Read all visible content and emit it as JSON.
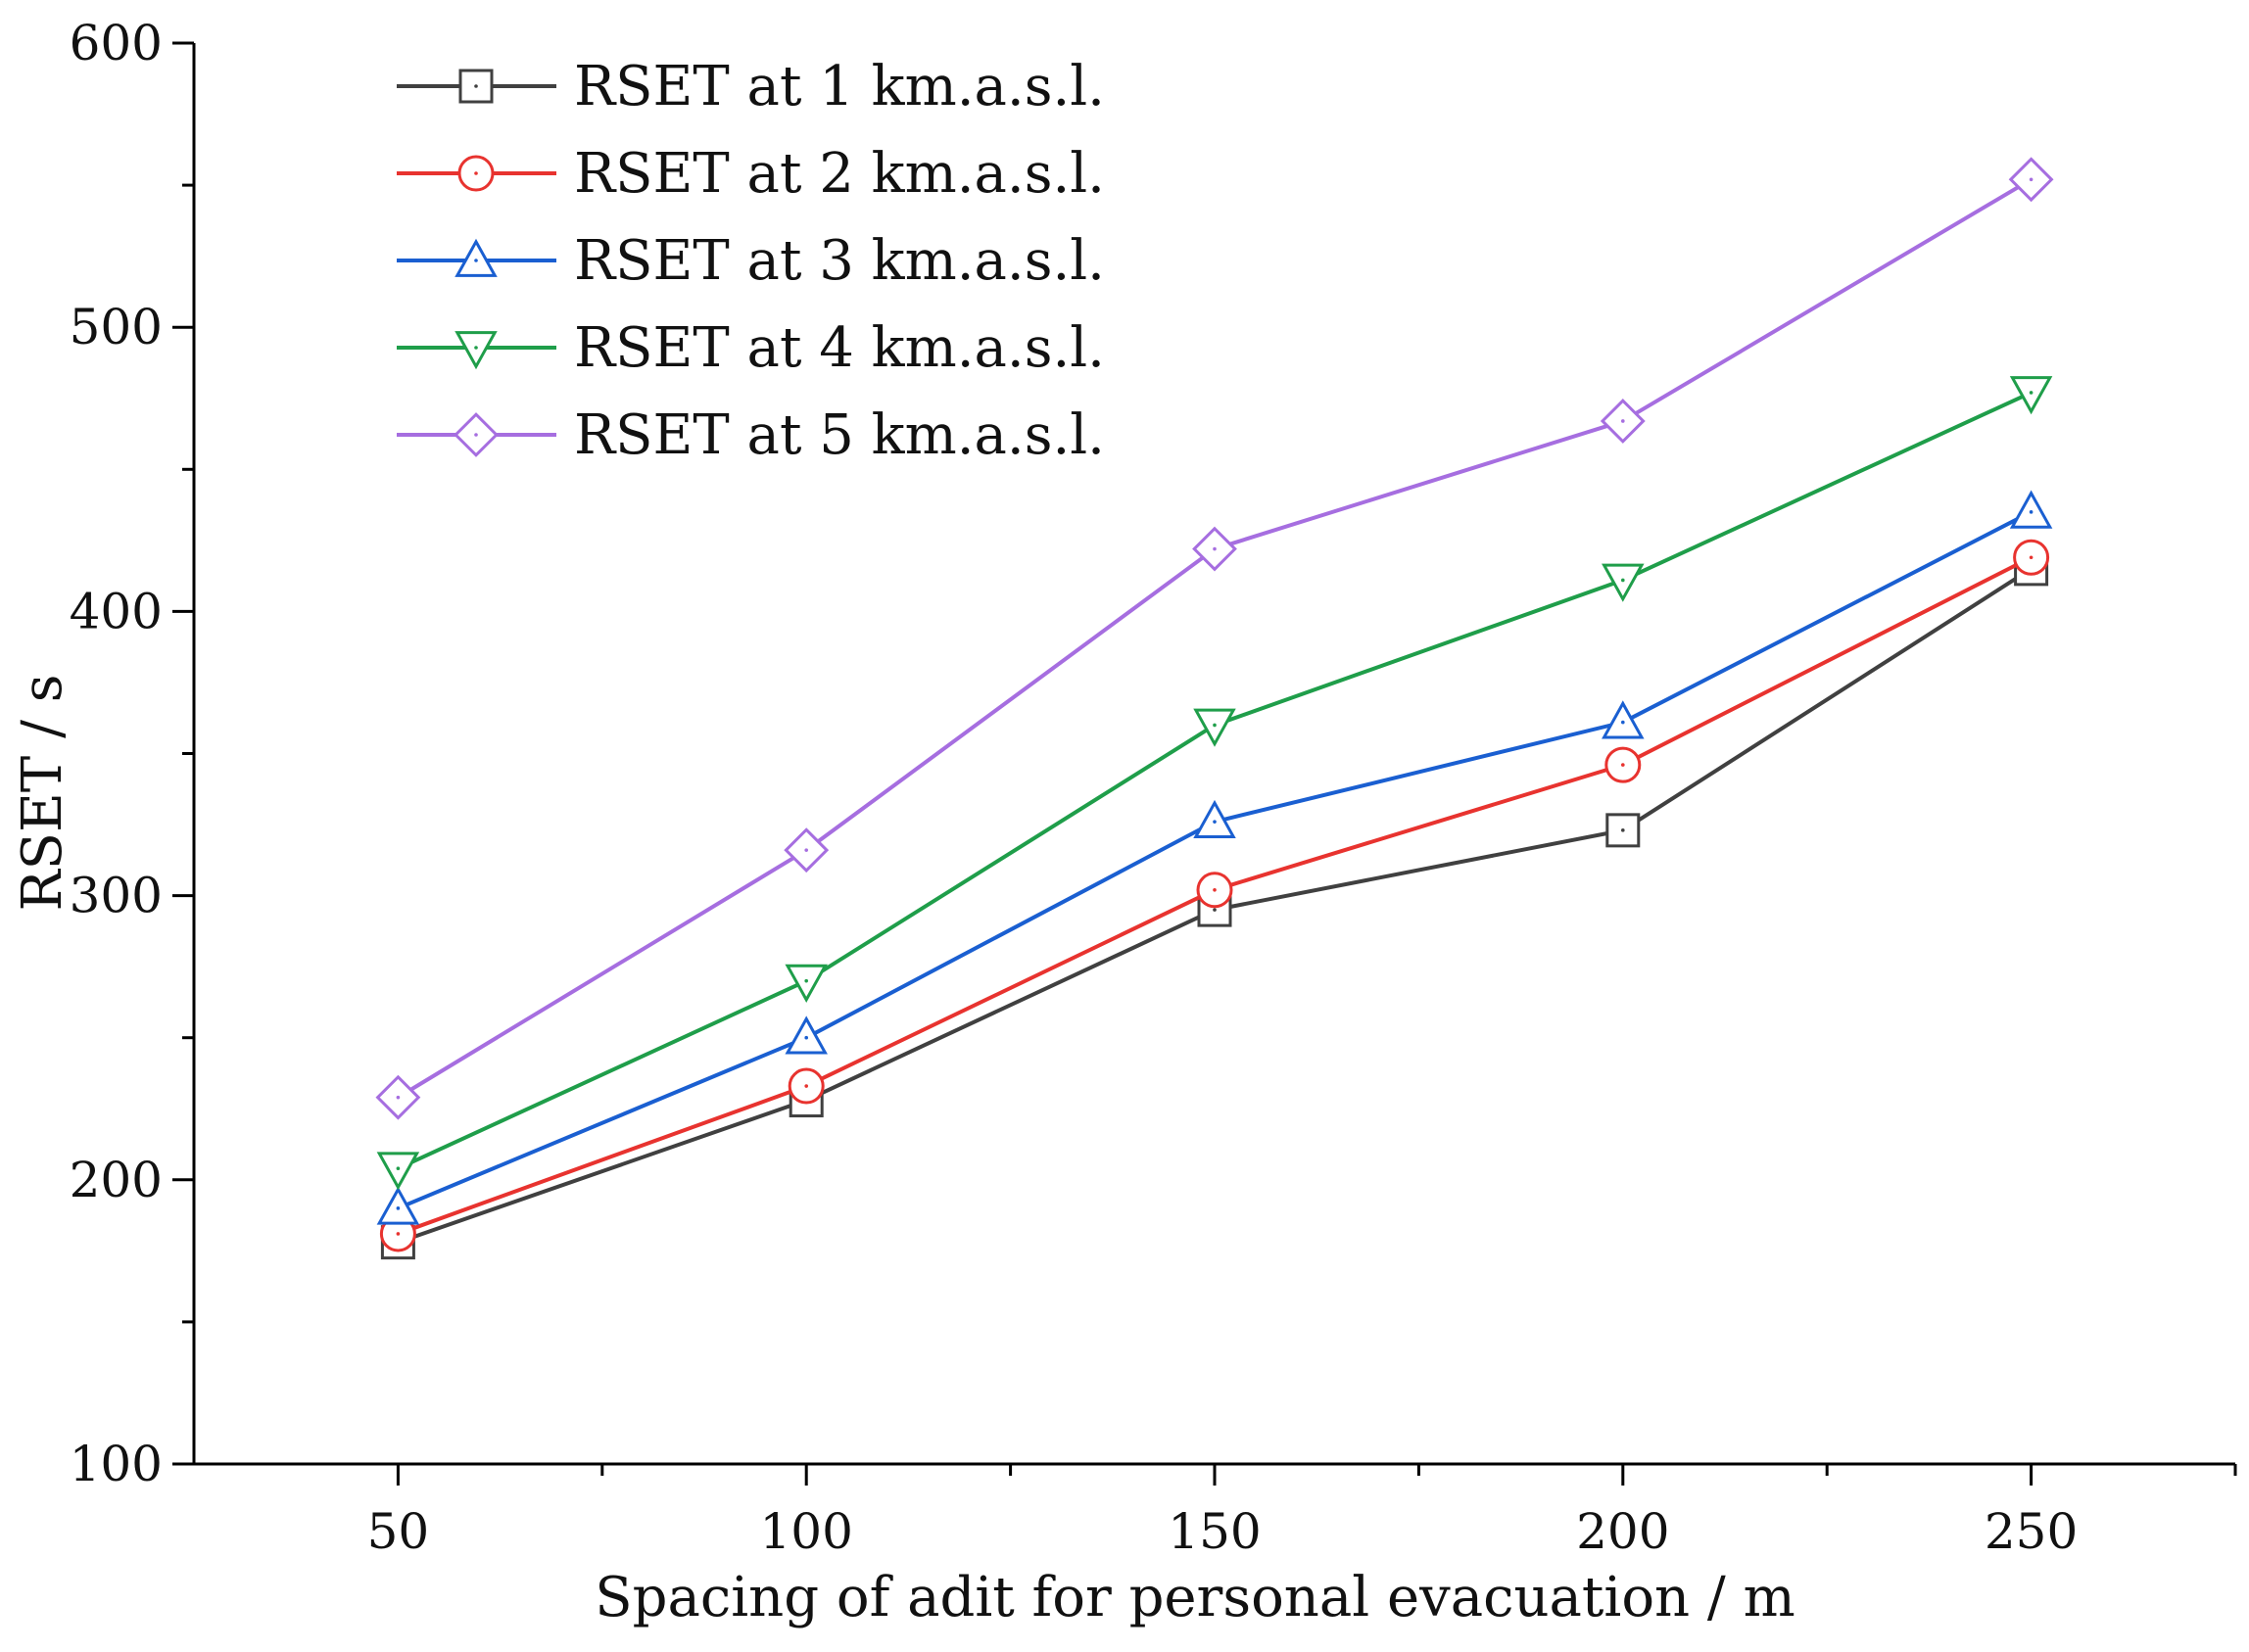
{
  "chart_data": {
    "type": "line",
    "title": "",
    "xlabel": "Spacing of adit for personal evacuation / m",
    "ylabel": "RSET / s",
    "x": [
      50,
      100,
      150,
      200,
      250
    ],
    "xlim": [
      25,
      275
    ],
    "ylim": [
      100,
      600
    ],
    "xticks": [
      50,
      100,
      150,
      200,
      250
    ],
    "yticks": [
      100,
      200,
      300,
      400,
      500,
      600
    ],
    "xticks_minor": [
      75,
      125,
      175,
      225,
      275
    ],
    "yticks_minor": [
      150,
      250,
      350,
      450,
      550
    ],
    "grid": false,
    "legend_position": "top-left",
    "series": [
      {
        "name": "RSET at 1 km.a.s.l.",
        "color": "#404040",
        "marker": "square",
        "values": [
          178,
          228,
          295,
          323,
          415
        ]
      },
      {
        "name": "RSET at 2 km.a.s.l.",
        "color": "#e8332f",
        "marker": "circle",
        "values": [
          181,
          233,
          302,
          346,
          419
        ]
      },
      {
        "name": "RSET at 3 km.a.s.l.",
        "color": "#1a5fd1",
        "marker": "triangle-up",
        "values": [
          190,
          250,
          326,
          361,
          435
        ]
      },
      {
        "name": "RSET at 4 km.a.s.l.",
        "color": "#1f9e4a",
        "marker": "triangle-down",
        "values": [
          204,
          270,
          360,
          411,
          477
        ]
      },
      {
        "name": "RSET at 5 km.a.s.l.",
        "color": "#a66ee0",
        "marker": "diamond",
        "values": [
          229,
          316,
          422,
          467,
          552
        ]
      }
    ]
  }
}
